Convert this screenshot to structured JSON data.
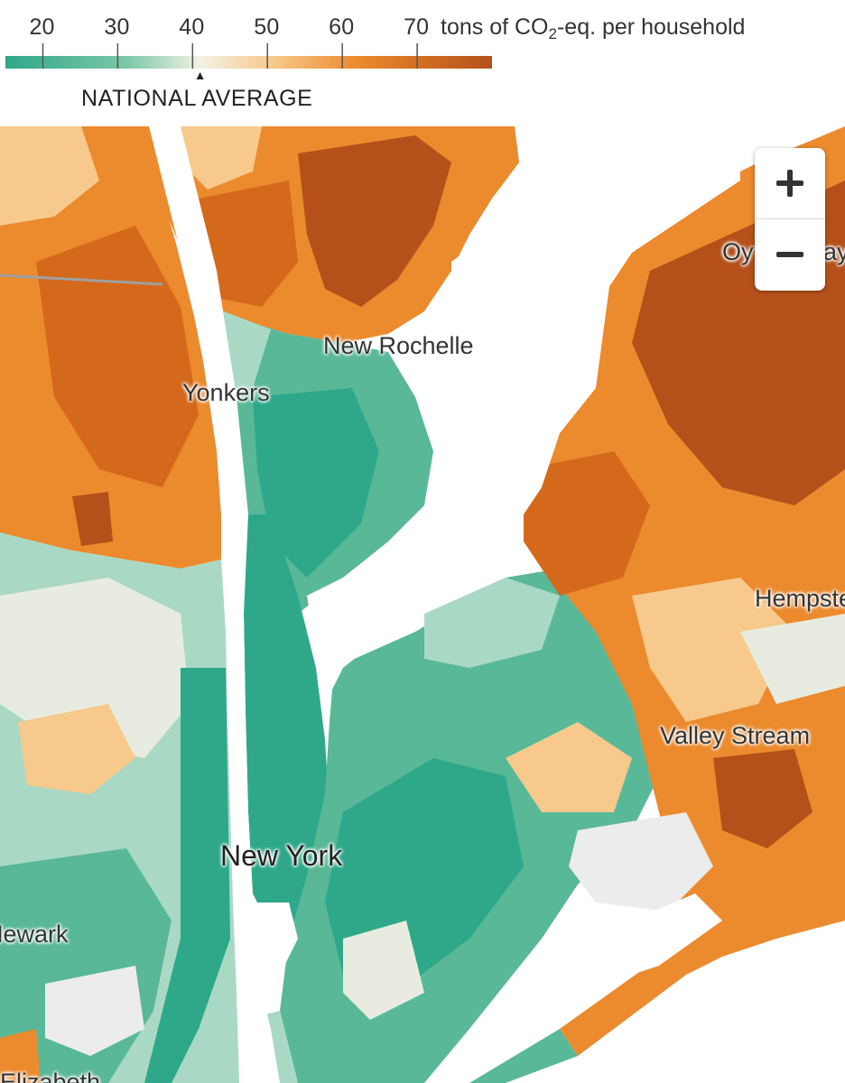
{
  "legend": {
    "ticks": [
      "20",
      "30",
      "40",
      "50",
      "60",
      "70"
    ],
    "unit_prefix": "tons of CO",
    "unit_sub": "2",
    "unit_suffix": "-eq. per household",
    "national_average_label": "NATIONAL AVERAGE",
    "national_average_value": 41,
    "range": [
      15,
      80
    ],
    "colors": {
      "low": "#2ea889",
      "mid": "#f3f2e4",
      "high": "#b5501a"
    }
  },
  "map": {
    "colors": {
      "water": "#ffffff",
      "deep_green": "#2ea889",
      "green": "#59b898",
      "light_green": "#a9d9c4",
      "pale": "#e8ece0",
      "light_orange": "#f7c98c",
      "orange": "#ec8a2e",
      "dark_orange": "#d4691c",
      "brown": "#b5501a",
      "gray": "#ececec"
    },
    "labels": {
      "new_rochelle": "New Rochelle",
      "yonkers": "Yonkers",
      "new_york": "New York",
      "newark": "Newark",
      "valley_stream": "Valley Stream",
      "hempstead": "Hempste",
      "oyster_bay": "Oy",
      "oyster_bay_tail": "ay",
      "elizabeth": "Elizabeth"
    }
  },
  "zoom": {
    "zoom_in_icon": "plus-icon",
    "zoom_out_icon": "minus-icon"
  }
}
